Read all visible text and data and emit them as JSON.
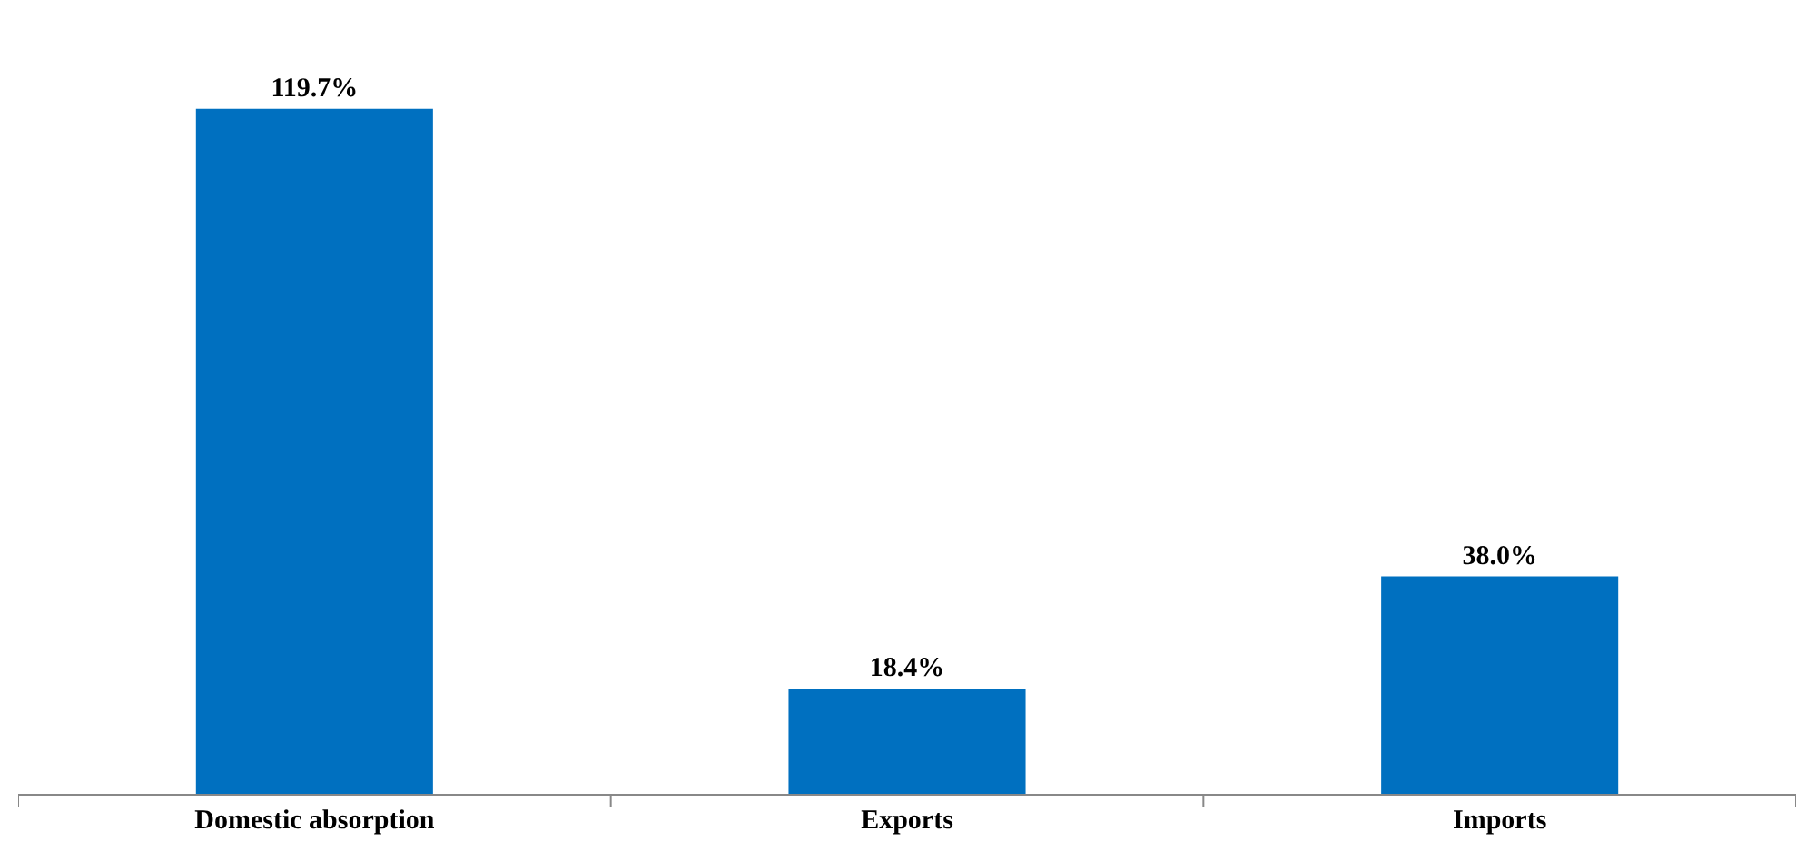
{
  "chart_data": {
    "type": "bar",
    "categories": [
      "Domestic absorption",
      "Exports",
      "Imports"
    ],
    "values": [
      119.7,
      18.4,
      38.0
    ],
    "value_labels": [
      "119.7%",
      "18.4%",
      "38.0%"
    ],
    "color": "#0070c0"
  }
}
